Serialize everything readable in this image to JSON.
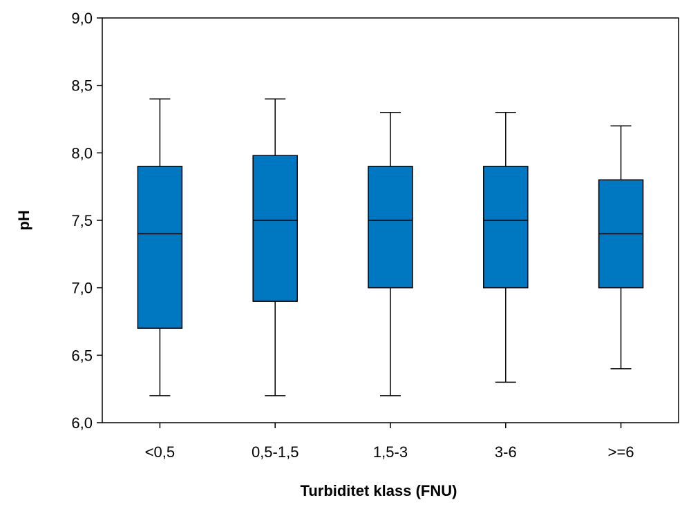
{
  "chart_data": {
    "type": "boxplot",
    "title": "",
    "xlabel": "Turbiditet klass (FNU)",
    "ylabel": "pH",
    "categories": [
      "<0,5",
      "0,5-1,5",
      "1,5-3",
      "3-6",
      ">=6"
    ],
    "boxes": [
      {
        "min": 6.2,
        "q1": 6.7,
        "median": 7.4,
        "q3": 7.9,
        "max": 8.4
      },
      {
        "min": 6.2,
        "q1": 6.9,
        "median": 7.5,
        "q3": 7.98,
        "max": 8.4
      },
      {
        "min": 6.2,
        "q1": 7.0,
        "median": 7.5,
        "q3": 7.9,
        "max": 8.3
      },
      {
        "min": 6.3,
        "q1": 7.0,
        "median": 7.5,
        "q3": 7.9,
        "max": 8.3
      },
      {
        "min": 6.4,
        "q1": 7.0,
        "median": 7.4,
        "q3": 7.8,
        "max": 8.2
      }
    ],
    "ylim": [
      6.0,
      9.0
    ],
    "yticks": [
      "6,0",
      "6,5",
      "7,0",
      "7,5",
      "8,0",
      "8,5",
      "9,0"
    ],
    "grid": false,
    "legend": "none",
    "colors": {
      "box_fill": "#0077C1",
      "stroke": "#000000"
    }
  }
}
